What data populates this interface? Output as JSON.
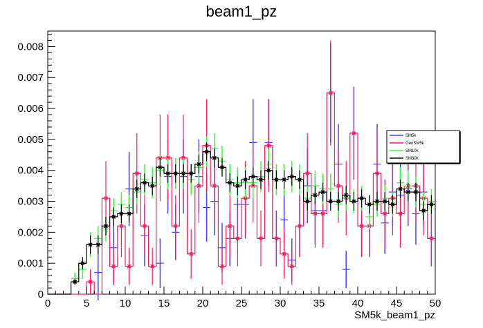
{
  "chart_data": {
    "type": "histogram",
    "title": "beam1_pz",
    "xlabel": "SM5k_beam1_pz",
    "ylabel": "",
    "xlim": [
      0,
      50
    ],
    "ylim": [
      0,
      0.0085
    ],
    "x_ticks": [
      "0",
      "5",
      "10",
      "15",
      "20",
      "25",
      "30",
      "35",
      "40",
      "45",
      "50"
    ],
    "y_ticks": [
      "0",
      "0.001",
      "0.002",
      "0.003",
      "0.004",
      "0.005",
      "0.006",
      "0.007",
      "0.008"
    ],
    "bin_edges": [
      0,
      1,
      2,
      3,
      4,
      5,
      6,
      7,
      8,
      9,
      10,
      11,
      12,
      13,
      14,
      15,
      16,
      17,
      18,
      19,
      20,
      21,
      22,
      23,
      24,
      25,
      26,
      27,
      28,
      29,
      30,
      31,
      32,
      33,
      34,
      35,
      36,
      37,
      38,
      39,
      40,
      41,
      42,
      43,
      44,
      45,
      46,
      47,
      48,
      49,
      50
    ],
    "legend_position": "right",
    "series": [
      {
        "name": "SM5k",
        "color": "#4040ff",
        "style": "errorbar",
        "values": [
          0,
          0,
          0,
          0,
          0,
          0,
          0.0007,
          0,
          0.0015,
          0,
          0.0034,
          0,
          0.0019,
          0,
          0.001,
          0.0038,
          0.002,
          0.0038,
          0,
          0.0038,
          0.0028,
          0.003,
          0.0015,
          0.0018,
          0.0029,
          0.0029,
          0.0049,
          0,
          0.0049,
          0.0018,
          0.0024,
          0.0011,
          0.0022,
          0.0035,
          0.0027,
          0.0027,
          0.0065,
          0.0042,
          0.0008,
          0.0052,
          0.0022,
          0.0022,
          0.0042,
          0.0023,
          0.0033,
          0.0032,
          0.0034,
          0.0026,
          0.0033,
          0.0018
        ],
        "errors": [
          0,
          0,
          0,
          0,
          0,
          0,
          0.0009,
          0,
          0.0012,
          0,
          0.0012,
          0,
          0.001,
          0,
          0.0008,
          0.0012,
          0.0009,
          0.0012,
          0,
          0.0012,
          0.0011,
          0.0011,
          0.0008,
          0.0009,
          0.0011,
          0.0011,
          0.0014,
          0,
          0.0014,
          0.0009,
          0.001,
          0.0007,
          0.001,
          0.0012,
          0.0011,
          0.0011,
          0.0016,
          0.0013,
          0.0006,
          0.0015,
          0.001,
          0.001,
          0.0013,
          0.001,
          0.0011,
          0.0011,
          0.0012,
          0.001,
          0.0011,
          0.0009
        ]
      },
      {
        "name": "GenSM5k",
        "color": "#ff1a5e",
        "style": "step-errorbar",
        "values": [
          0,
          0,
          0,
          0,
          0,
          0.0004,
          0,
          0.0031,
          0.0009,
          0.0022,
          0.0009,
          0.0039,
          0.0022,
          0.0009,
          0.0044,
          0.0044,
          0.0022,
          0.0044,
          0.0013,
          0.0035,
          0.0048,
          0.0035,
          0.0009,
          0.0022,
          0.0018,
          0.0031,
          0.0035,
          0.0018,
          0.0048,
          0.0018,
          0.0013,
          0.0009,
          0.0022,
          0.0039,
          0.0026,
          0.0026,
          0.0065,
          0.0035,
          0.0031,
          0.0052,
          0.0022,
          0.0022,
          0.0039,
          0.0026,
          0.0031,
          0.0026,
          0.0035,
          0.0035,
          0.0031,
          0.0018
        ],
        "errors": [
          0,
          0,
          0,
          0,
          0,
          0.0004,
          0,
          0.0012,
          0.0006,
          0.001,
          0.0006,
          0.0013,
          0.001,
          0.0006,
          0.0014,
          0.0014,
          0.001,
          0.0014,
          0.0008,
          0.0012,
          0.0015,
          0.0012,
          0.0006,
          0.001,
          0.0009,
          0.0012,
          0.0012,
          0.0009,
          0.0015,
          0.0009,
          0.0008,
          0.0006,
          0.001,
          0.0013,
          0.0011,
          0.0011,
          0.0017,
          0.0012,
          0.0012,
          0.0015,
          0.001,
          0.001,
          0.0013,
          0.0011,
          0.0012,
          0.0011,
          0.0012,
          0.0012,
          0.0012,
          0.0009
        ]
      },
      {
        "name": "SM10k",
        "color": "#33ff33",
        "style": "errorbar",
        "values": [
          0,
          0,
          0,
          0.0005,
          0.0008,
          0.0016,
          0.0018,
          0.0021,
          0.0027,
          0.0029,
          0.0028,
          0.0033,
          0.0037,
          0.0036,
          0.004,
          0.0039,
          0.0039,
          0.0039,
          0.0037,
          0.0041,
          0.0046,
          0.0047,
          0.0043,
          0.0037,
          0.0036,
          0.0036,
          0.0036,
          0.0038,
          0.0042,
          0.0037,
          0.0037,
          0.0038,
          0.0037,
          0.0031,
          0.0035,
          0.0034,
          0.0034,
          0.0029,
          0.0031,
          0.003,
          0.0031,
          0.0025,
          0.0029,
          0.0031,
          0.0029,
          0.0036,
          0.0035,
          0.0033,
          0.0029,
          0.003
        ],
        "errors": [
          0,
          0,
          0,
          0.0002,
          0.0003,
          0.0004,
          0.0004,
          0.0004,
          0.0004,
          0.0004,
          0.0004,
          0.0004,
          0.0005,
          0.0005,
          0.0005,
          0.0005,
          0.0005,
          0.0005,
          0.0005,
          0.0005,
          0.0005,
          0.0005,
          0.0005,
          0.0005,
          0.0005,
          0.0005,
          0.0005,
          0.0005,
          0.0005,
          0.0005,
          0.0005,
          0.0005,
          0.0005,
          0.0004,
          0.0005,
          0.0005,
          0.0005,
          0.0004,
          0.0004,
          0.0004,
          0.0004,
          0.0004,
          0.0004,
          0.0004,
          0.0004,
          0.0005,
          0.0005,
          0.0005,
          0.0004,
          0.0004
        ]
      },
      {
        "name": "SM30k",
        "color": "#000000",
        "style": "step-errorbar",
        "values": [
          0,
          0,
          0,
          0.0004,
          0.001,
          0.0016,
          0.0016,
          0.0022,
          0.0025,
          0.0026,
          0.0026,
          0.0034,
          0.0036,
          0.0035,
          0.0041,
          0.0039,
          0.0039,
          0.0039,
          0.0039,
          0.0042,
          0.0046,
          0.0044,
          0.0041,
          0.0036,
          0.0035,
          0.0037,
          0.0038,
          0.0037,
          0.004,
          0.0037,
          0.0037,
          0.0038,
          0.0037,
          0.003,
          0.0032,
          0.0033,
          0.003,
          0.003,
          0.0032,
          0.003,
          0.0031,
          0.0029,
          0.003,
          0.003,
          0.0029,
          0.0034,
          0.0033,
          0.0033,
          0.0027,
          0.0029
        ],
        "errors": [
          0,
          0,
          0,
          0.0001,
          0.0002,
          0.0003,
          0.0003,
          0.0003,
          0.0003,
          0.0003,
          0.0003,
          0.0003,
          0.0003,
          0.0003,
          0.0003,
          0.0003,
          0.0003,
          0.0003,
          0.0003,
          0.0003,
          0.0003,
          0.0003,
          0.0003,
          0.0003,
          0.0003,
          0.0003,
          0.0003,
          0.0003,
          0.0003,
          0.0003,
          0.0003,
          0.0003,
          0.0003,
          0.0003,
          0.0003,
          0.0003,
          0.0003,
          0.0003,
          0.0003,
          0.0003,
          0.0003,
          0.0003,
          0.0003,
          0.0003,
          0.0003,
          0.0003,
          0.0003,
          0.0003,
          0.0003,
          0.0003
        ]
      }
    ]
  }
}
